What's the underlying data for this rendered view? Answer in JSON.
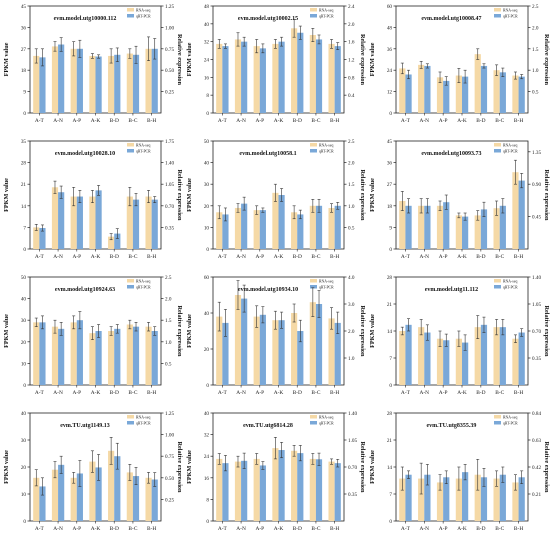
{
  "legend_labels": [
    "RNA-seq",
    "qRT-PCR"
  ],
  "colors": {
    "rna": "#f5d9a6",
    "qpcr": "#7aa8d8",
    "axis": "#222222",
    "error": "#333333"
  },
  "left_axis_label": "FPKM value",
  "right_axis_label": "Relative expression",
  "chart_data": [
    {
      "type": "bar",
      "title": "evm.model.utg10000.112",
      "categories": [
        "A-T",
        "A-N",
        "A-P",
        "A-K",
        "B-D",
        "B-C",
        "B-H"
      ],
      "ylabel": "FPKM value",
      "y2label": "Relative expression",
      "ylim": [
        0,
        45
      ],
      "yticks": [
        0,
        9,
        18,
        27,
        36,
        45
      ],
      "y2lim": [
        0,
        1.25
      ],
      "y2ticks": [
        "0.25",
        "0.50",
        "0.75",
        "1.00",
        "1.25"
      ],
      "series": [
        {
          "name": "RNA-seq",
          "axis": "left",
          "values": [
            24,
            28,
            27,
            24,
            24,
            25,
            27
          ],
          "errors": [
            3,
            2,
            3,
            1,
            3,
            2,
            5
          ]
        },
        {
          "name": "qRT-PCR",
          "axis": "right",
          "values": [
            0.65,
            0.8,
            0.75,
            0.66,
            0.68,
            0.68,
            0.75
          ],
          "errors": [
            0.1,
            0.08,
            0.1,
            0.02,
            0.08,
            0.1,
            0.12
          ]
        }
      ]
    },
    {
      "type": "bar",
      "title": "evm.model.utg10002.15",
      "categories": [
        "A-T",
        "A-N",
        "A-P",
        "A-K",
        "B-D",
        "B-C",
        "B-H"
      ],
      "ylabel": "FPKM value",
      "y2label": "Relative expression",
      "ylim": [
        0,
        48
      ],
      "yticks": [
        0,
        8,
        16,
        24,
        32,
        40,
        48
      ],
      "y2lim": [
        0,
        2.4
      ],
      "y2ticks": [
        "0.4",
        "0.8",
        "1.2",
        "1.6",
        "2.0",
        "2.4"
      ],
      "series": [
        {
          "name": "RNA-seq",
          "axis": "left",
          "values": [
            31,
            33,
            30,
            31,
            38,
            35,
            31
          ],
          "errors": [
            2,
            3,
            3,
            2,
            4,
            3,
            2
          ]
        },
        {
          "name": "qRT-PCR",
          "axis": "right",
          "values": [
            1.5,
            1.6,
            1.45,
            1.6,
            1.8,
            1.65,
            1.5
          ],
          "errors": [
            0.05,
            0.1,
            0.1,
            0.1,
            0.15,
            0.1,
            0.08
          ]
        }
      ]
    },
    {
      "type": "bar",
      "title": "evm.model.utg10008.47",
      "categories": [
        "A-T",
        "A-N",
        "A-P",
        "A-K",
        "B-D",
        "B-C",
        "B-H"
      ],
      "ylabel": "FPKM value",
      "y2label": "Relative expression",
      "ylim": [
        0,
        60
      ],
      "yticks": [
        0,
        12,
        24,
        36,
        48,
        60
      ],
      "y2lim": [
        0,
        2.5
      ],
      "y2ticks": [
        "0.5",
        "1.0",
        "1.5",
        "2.0",
        "2.5"
      ],
      "series": [
        {
          "name": "RNA-seq",
          "axis": "left",
          "values": [
            25,
            27,
            20,
            21,
            33,
            24,
            21
          ],
          "errors": [
            3,
            2,
            3,
            4,
            3,
            3,
            2
          ]
        },
        {
          "name": "qRT-PCR",
          "axis": "right",
          "values": [
            0.9,
            1.1,
            0.75,
            0.85,
            1.1,
            0.95,
            0.85
          ],
          "errors": [
            0.1,
            0.05,
            0.1,
            0.15,
            0.05,
            0.1,
            0.05
          ]
        }
      ]
    },
    {
      "type": "bar",
      "title": "evm.model.utg10028.10",
      "categories": [
        "A-T",
        "A-N",
        "A-P",
        "A-K",
        "B-D",
        "B-C",
        "B-H"
      ],
      "ylabel": "FPKM value",
      "y2label": "Relative expression",
      "ylim": [
        0,
        35
      ],
      "yticks": [
        0,
        7,
        14,
        21,
        28,
        35
      ],
      "y2lim": [
        0,
        1.75
      ],
      "y2ticks": [
        "0.35",
        "0.70",
        "1.05",
        "1.40",
        "1.75"
      ],
      "series": [
        {
          "name": "RNA-seq",
          "axis": "left",
          "values": [
            7,
            20,
            17,
            17,
            4,
            17,
            17
          ],
          "errors": [
            1,
            2,
            3,
            2,
            1,
            3,
            2
          ]
        },
        {
          "name": "qRT-PCR",
          "axis": "right",
          "values": [
            0.34,
            0.92,
            0.85,
            0.95,
            0.25,
            0.8,
            0.8
          ],
          "errors": [
            0.05,
            0.1,
            0.1,
            0.08,
            0.08,
            0.1,
            0.05
          ]
        }
      ]
    },
    {
      "type": "bar",
      "title": "evm.model.utg10058.1",
      "categories": [
        "A-T",
        "A-N",
        "A-P",
        "A-K",
        "B-D",
        "B-C",
        "B-H"
      ],
      "ylabel": "FPKM value",
      "y2label": "Relative expression",
      "ylim": [
        0,
        50
      ],
      "yticks": [
        0,
        10,
        20,
        30,
        40,
        50
      ],
      "y2lim": [
        0,
        2.5
      ],
      "y2ticks": [
        "0.5",
        "1.0",
        "1.5",
        "2.0",
        "2.5"
      ],
      "series": [
        {
          "name": "RNA-seq",
          "axis": "left",
          "values": [
            17,
            19,
            18,
            26,
            17,
            20,
            19
          ],
          "errors": [
            3,
            2,
            2,
            4,
            3,
            3,
            2
          ]
        },
        {
          "name": "qRT-PCR",
          "axis": "right",
          "values": [
            0.8,
            1.05,
            0.9,
            1.25,
            0.8,
            1.0,
            1.0
          ],
          "errors": [
            0.15,
            0.15,
            0.05,
            0.15,
            0.1,
            0.15,
            0.08
          ]
        }
      ]
    },
    {
      "type": "bar",
      "title": "evm.model.utg10093.73",
      "categories": [
        "A-T",
        "A-N",
        "A-P",
        "A-K",
        "B-D",
        "B-C",
        "B-H"
      ],
      "ylabel": "FPKM value",
      "y2label": "Relative expression",
      "ylim": [
        0,
        45
      ],
      "yticks": [
        0,
        9,
        18,
        27,
        36,
        45
      ],
      "y2lim": [
        0,
        1.5
      ],
      "y2ticks": [
        "0.45",
        "0.90",
        "1.35"
      ],
      "series": [
        {
          "name": "RNA-seq",
          "axis": "left",
          "values": [
            20,
            18,
            18,
            14,
            14,
            17,
            32
          ],
          "errors": [
            4,
            3,
            2,
            1,
            2,
            3,
            5
          ]
        },
        {
          "name": "qRT-PCR",
          "axis": "right",
          "values": [
            0.6,
            0.6,
            0.65,
            0.45,
            0.55,
            0.6,
            0.95
          ],
          "errors": [
            0.1,
            0.1,
            0.1,
            0.05,
            0.1,
            0.1,
            0.1
          ]
        }
      ]
    },
    {
      "type": "bar",
      "title": "evm.model.utg10924.63",
      "categories": [
        "A-T",
        "A-N",
        "A-P",
        "A-K",
        "B-D",
        "B-C",
        "B-H"
      ],
      "ylabel": "FPKM value",
      "y2label": "Relative expression",
      "ylim": [
        0,
        50
      ],
      "yticks": [
        0,
        10,
        20,
        30,
        40,
        50
      ],
      "y2lim": [
        0,
        2.5
      ],
      "y2ticks": [
        "0.5",
        "1.0",
        "1.5",
        "2.0",
        "2.5"
      ],
      "series": [
        {
          "name": "RNA-seq",
          "axis": "left",
          "values": [
            29,
            27,
            29,
            24,
            25,
            28,
            27
          ],
          "errors": [
            2,
            3,
            3,
            3,
            2,
            2,
            2
          ]
        },
        {
          "name": "qRT-PCR",
          "axis": "right",
          "values": [
            1.45,
            1.3,
            1.5,
            1.25,
            1.3,
            1.35,
            1.25
          ],
          "errors": [
            0.15,
            0.15,
            0.2,
            0.15,
            0.1,
            0.1,
            0.1
          ]
        }
      ]
    },
    {
      "type": "bar",
      "title": "evm.model.utg10934.10",
      "categories": [
        "A-T",
        "A-N",
        "A-P",
        "A-K",
        "B-D",
        "B-C",
        "B-H"
      ],
      "ylabel": "FPKM value",
      "y2label": "Relative expression",
      "ylim": [
        0,
        60
      ],
      "yticks": [
        0,
        20,
        40,
        60
      ],
      "y2lim": [
        0,
        4.0
      ],
      "y2ticks": [
        "1.0",
        "2.0",
        "3.0",
        "4.0"
      ],
      "series": [
        {
          "name": "RNA-seq",
          "axis": "left",
          "values": [
            38,
            50,
            38,
            36,
            40,
            46,
            37
          ],
          "errors": [
            8,
            8,
            6,
            5,
            5,
            8,
            6
          ]
        },
        {
          "name": "qRT-PCR",
          "axis": "right",
          "values": [
            2.3,
            3.2,
            2.6,
            2.4,
            2.0,
            3.0,
            2.3
          ],
          "errors": [
            0.5,
            0.5,
            0.3,
            0.3,
            0.4,
            0.5,
            0.4
          ]
        }
      ]
    },
    {
      "type": "bar",
      "title": "evm.model.utg11.112",
      "categories": [
        "A-T",
        "A-N",
        "A-P",
        "A-K",
        "B-D",
        "B-C",
        "B-H"
      ],
      "ylabel": "FPKM value",
      "y2label": "Relative expression",
      "ylim": [
        0,
        28
      ],
      "yticks": [
        0,
        7,
        14,
        21,
        28
      ],
      "y2lim": [
        0,
        1.4
      ],
      "y2ticks": [
        "0.35",
        "0.70",
        "1.05",
        "1.40"
      ],
      "series": [
        {
          "name": "RNA-seq",
          "axis": "left",
          "values": [
            14,
            15,
            12,
            12,
            15,
            15,
            12
          ],
          "errors": [
            1,
            2,
            2,
            2,
            3,
            2,
            1
          ]
        },
        {
          "name": "qRT-PCR",
          "axis": "right",
          "values": [
            0.78,
            0.68,
            0.58,
            0.55,
            0.78,
            0.75,
            0.68
          ],
          "errors": [
            0.08,
            0.1,
            0.08,
            0.1,
            0.1,
            0.1,
            0.05
          ]
        }
      ]
    },
    {
      "type": "bar",
      "title": "evm.TU.utg1149.13",
      "categories": [
        "A-T",
        "A-N",
        "A-P",
        "A-K",
        "B-D",
        "B-C",
        "B-H"
      ],
      "ylabel": "FPKM value",
      "y2label": "Relative expression",
      "ylim": [
        0,
        40
      ],
      "yticks": [
        0,
        10,
        20,
        30,
        40
      ],
      "y2lim": [
        0,
        1.25
      ],
      "y2ticks": [
        "0.25",
        "0.50",
        "0.75",
        "1.00",
        "1.25"
      ],
      "series": [
        {
          "name": "RNA-seq",
          "axis": "left",
          "values": [
            16,
            19,
            16,
            22,
            26,
            18,
            16
          ],
          "errors": [
            3,
            3,
            2,
            4,
            5,
            3,
            2
          ]
        },
        {
          "name": "qRT-PCR",
          "axis": "right",
          "values": [
            0.4,
            0.65,
            0.55,
            0.62,
            0.75,
            0.52,
            0.48
          ],
          "errors": [
            0.1,
            0.1,
            0.15,
            0.15,
            0.15,
            0.1,
            0.08
          ]
        }
      ]
    },
    {
      "type": "bar",
      "title": "evm.TU.utg6814.28",
      "categories": [
        "A-T",
        "A-N",
        "A-P",
        "A-K",
        "B-D",
        "B-C",
        "B-H"
      ],
      "ylabel": "FPKM value",
      "y2label": "Relative expression",
      "ylim": [
        0,
        40
      ],
      "yticks": [
        0,
        8,
        16,
        24,
        32,
        40
      ],
      "y2lim": [
        0,
        1.4
      ],
      "y2ticks": [
        "0.35",
        "0.70",
        "1.05",
        "1.40"
      ],
      "series": [
        {
          "name": "RNA-seq",
          "axis": "left",
          "values": [
            23,
            22,
            23,
            27,
            26,
            23,
            22
          ],
          "errors": [
            2,
            2,
            2,
            4,
            2,
            2,
            1
          ]
        },
        {
          "name": "qRT-PCR",
          "axis": "right",
          "values": [
            0.75,
            0.78,
            0.72,
            0.92,
            0.88,
            0.8,
            0.75
          ],
          "errors": [
            0.1,
            0.1,
            0.05,
            0.1,
            0.1,
            0.08,
            0.05
          ]
        }
      ]
    },
    {
      "type": "bar",
      "title": "evm.TU.utg8355.39",
      "categories": [
        "A-T",
        "A-N",
        "A-P",
        "A-K",
        "B-D",
        "B-C",
        "B-H"
      ],
      "ylabel": "FPKM value",
      "y2label": "Relative expression",
      "ylim": [
        0,
        28
      ],
      "yticks": [
        0,
        7,
        14,
        21,
        28
      ],
      "y2lim": [
        0,
        0.84
      ],
      "y2ticks": [
        "0.21",
        "0.42",
        "0.63",
        "0.84"
      ],
      "series": [
        {
          "name": "RNA-seq",
          "axis": "left",
          "values": [
            11,
            11,
            10,
            11,
            12,
            11,
            10
          ],
          "errors": [
            3,
            4,
            2,
            3,
            4,
            2,
            2
          ]
        },
        {
          "name": "qRT-PCR",
          "axis": "right",
          "values": [
            0.36,
            0.36,
            0.34,
            0.38,
            0.34,
            0.36,
            0.34
          ],
          "errors": [
            0.03,
            0.08,
            0.05,
            0.06,
            0.07,
            0.06,
            0.05
          ]
        }
      ]
    }
  ]
}
